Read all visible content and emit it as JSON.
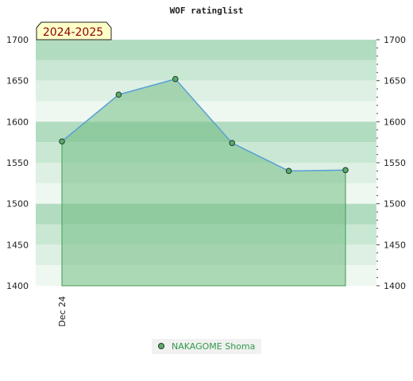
{
  "chart_data": {
    "type": "area",
    "title": "WOF ratinglist",
    "season_label": "2024-2025",
    "xlabel": "",
    "ylabel": "",
    "x_tick_labels": [
      "Dec 24"
    ],
    "ylim": [
      1400,
      1700
    ],
    "y_ticks": [
      1400,
      1450,
      1500,
      1550,
      1600,
      1650,
      1700
    ],
    "grid": true,
    "legend_position": "bottom-center",
    "series": [
      {
        "name": "NAKAGOME Shoma",
        "points": [
          1576,
          1633,
          1652,
          1574,
          1540,
          1541
        ]
      }
    ],
    "colors": {
      "line": "#5aa0d8",
      "area": "#74bd85",
      "marker": "#5cab6d",
      "band_dark": "#b2dcc0",
      "band_mid": "#c9e8d3",
      "band_light": "#ddf0e3",
      "band_pale": "#eef8f0",
      "legend_text": "#2f9a4a",
      "season_text": "#8a0000",
      "season_bg": "#ffffc8"
    }
  }
}
